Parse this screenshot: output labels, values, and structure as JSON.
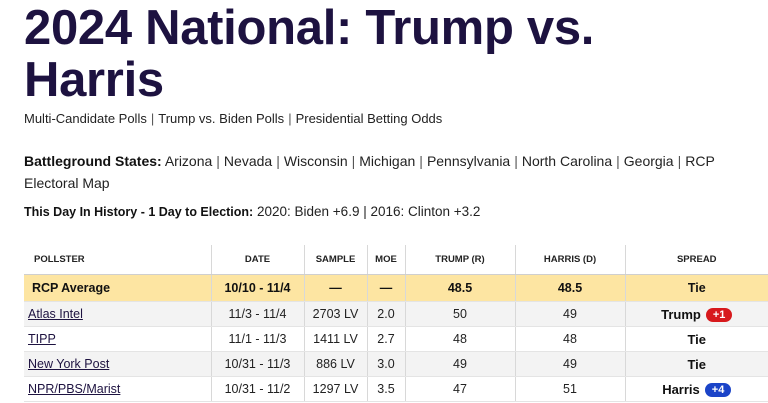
{
  "page": {
    "title": "2024 National: Trump vs. Harris",
    "sublinks": [
      "Multi-Candidate Polls",
      "Trump vs. Biden Polls",
      "Presidential Betting Odds"
    ]
  },
  "battleground": {
    "label": "Battleground States:",
    "links": [
      "Arizona",
      "Nevada",
      "Wisconsin",
      "Michigan",
      "Pennsylvania",
      "North Carolina",
      "Georgia",
      "RCP Electoral Map"
    ]
  },
  "history": {
    "label": "This Day In History - 1 Day to Election:",
    "text": "2020: Biden +6.9 | 2016: Clinton +3.2"
  },
  "table": {
    "headers": {
      "pollster": "POLLSTER",
      "date": "DATE",
      "sample": "SAMPLE",
      "moe": "MOE",
      "trump": "TRUMP (R)",
      "harris": "HARRIS (D)",
      "spread": "SPREAD"
    },
    "average": {
      "pollster": "RCP Average",
      "date": "10/10 - 11/4",
      "sample": "—",
      "moe": "—",
      "trump": "48.5",
      "harris": "48.5",
      "spread": "Tie"
    },
    "rows": [
      {
        "pollster": "Atlas Intel",
        "date": "11/3 - 11/4",
        "sample": "2703 LV",
        "moe": "2.0",
        "trump": "50",
        "harris": "49",
        "spread_name": "Trump",
        "spread_badge": "+1"
      },
      {
        "pollster": "TIPP",
        "date": "11/1 - 11/3",
        "sample": "1411 LV",
        "moe": "2.7",
        "trump": "48",
        "harris": "48",
        "spread_text": "Tie"
      },
      {
        "pollster": "New York Post",
        "date": "10/31 - 11/3",
        "sample": "886 LV",
        "moe": "3.0",
        "trump": "49",
        "harris": "49",
        "spread_text": "Tie"
      },
      {
        "pollster": "NPR/PBS/Marist",
        "date": "10/31 - 11/2",
        "sample": "1297 LV",
        "moe": "3.5",
        "trump": "47",
        "harris": "51",
        "spread_name": "Harris",
        "spread_badge": "+4"
      }
    ]
  },
  "colors": {
    "title": "#1d1240",
    "average_row": "#fde5a2",
    "trump_badge": "#d7191c",
    "harris_badge": "#1b44c8"
  }
}
